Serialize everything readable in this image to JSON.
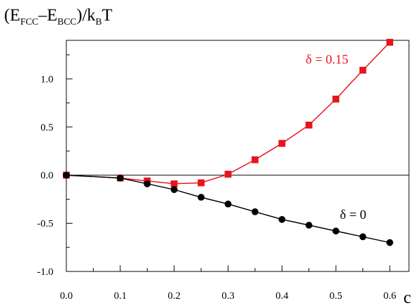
{
  "chart_data": {
    "type": "line",
    "ylabel": {
      "open": "(E",
      "sub1": "FCC",
      "dash": "–E",
      "sub2": "BCC",
      "close": ")/k",
      "sub3": "B",
      "tail": "T"
    },
    "xlabel": "c",
    "xlim": [
      0,
      0.6
    ],
    "ylim": [
      -1.0,
      1.4
    ],
    "x_ticks": [
      "0.0",
      "0.1",
      "0.2",
      "0.3",
      "0.4",
      "0.5",
      "0.6"
    ],
    "y_ticks": [
      "1.0",
      "0.5",
      "0.0",
      "-0.5",
      "-1.0"
    ],
    "grid": false,
    "series": [
      {
        "name": "δ = 0.15",
        "color": "#e8141c",
        "marker": "square",
        "x": [
          0.0,
          0.1,
          0.15,
          0.2,
          0.25,
          0.3,
          0.35,
          0.4,
          0.45,
          0.5,
          0.55,
          0.6
        ],
        "y": [
          0.0,
          -0.03,
          -0.06,
          -0.09,
          -0.08,
          0.01,
          0.16,
          0.33,
          0.52,
          0.79,
          1.09,
          1.38
        ]
      },
      {
        "name": "δ = 0",
        "color": "#000000",
        "marker": "circle",
        "x": [
          0.0,
          0.1,
          0.15,
          0.2,
          0.25,
          0.3,
          0.35,
          0.4,
          0.45,
          0.5,
          0.55,
          0.6
        ],
        "y": [
          0.0,
          -0.03,
          -0.09,
          -0.15,
          -0.23,
          -0.3,
          -0.38,
          -0.46,
          -0.52,
          -0.58,
          -0.64,
          -0.7
        ]
      }
    ]
  }
}
